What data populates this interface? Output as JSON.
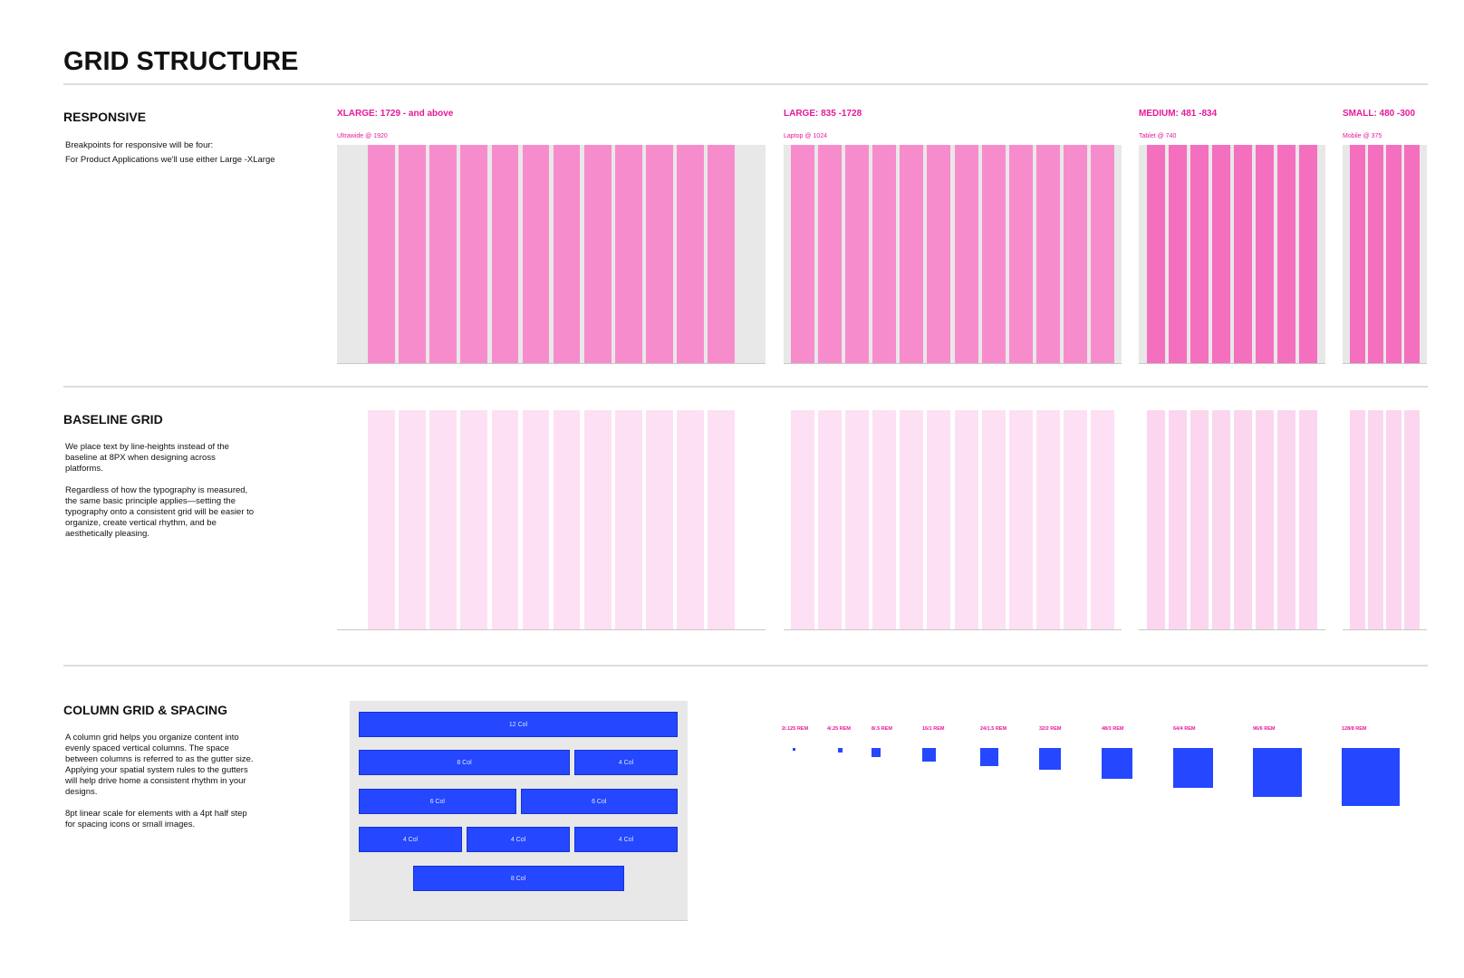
{
  "header": {
    "title": "GRID STRUCTURE"
  },
  "responsive": {
    "heading": "RESPONSIVE",
    "paragraphs": [
      "Breakpoints for responsive will be four:",
      "For Product Applications we'll use either Large -XLarge"
    ],
    "breakpoints": [
      {
        "label": "XLARGE: 1729 - and above",
        "device": "Ultrawide @ 1920"
      },
      {
        "label": "LARGE: 835 -1728",
        "device": "Laptop @ 1024"
      },
      {
        "label": "MEDIUM: 481 -834",
        "device": "Tablet @ 740"
      },
      {
        "label": "SMALL: 480 -300",
        "device": "Mobile @ 375"
      }
    ]
  },
  "baseline": {
    "heading": "BASELINE GRID",
    "paragraphs": [
      "We place text by line-heights instead of the baseline at 8PX when designing across platforms.",
      "Regardless of how the typography is measured, the same basic principle applies—setting the typography onto a consistent grid will be easier to organize, create vertical rhythm, and be aesthetically pleasing."
    ]
  },
  "columns": {
    "heading": "COLUMN GRID & SPACING",
    "paragraphs": [
      "A column grid helps you organize content into evenly spaced vertical columns. The space between columns is referred to as the gutter size. Applying your spatial system rules to the gutters will help drive home a consistent rhythm in your designs.",
      "8pt linear scale for elements with a 4pt half step for spacing icons or small images."
    ],
    "rows": [
      [
        "12 Col"
      ],
      [
        "8 Col",
        "4 Col"
      ],
      [
        "6 Col",
        "6 Col"
      ],
      [
        "4 Col",
        "4 Col",
        "4 Col"
      ],
      [
        "8 Col"
      ]
    ],
    "spacing": [
      "2/.125 REM",
      "4/.25 REM",
      "8/.5 REM",
      "16/1 REM",
      "24/1.5 REM",
      "32/2 REM",
      "48/3 REM",
      "64/4 REM",
      "96/6 REM",
      "128/8 REM"
    ]
  }
}
